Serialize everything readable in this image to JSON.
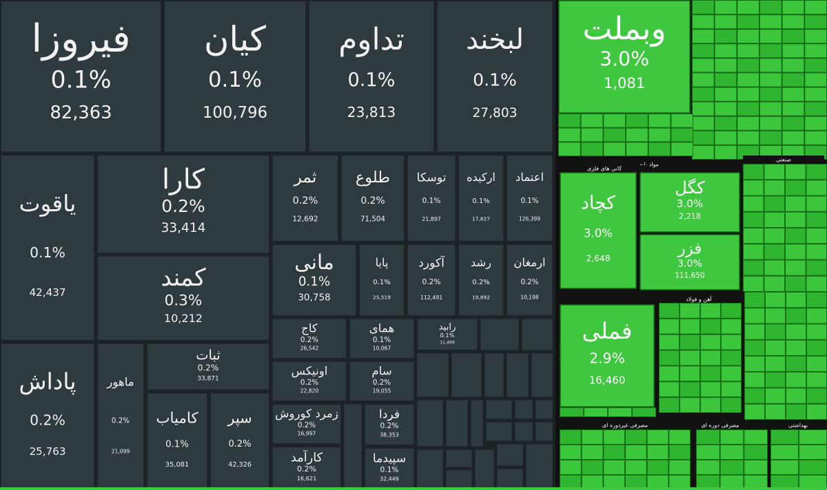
{
  "dark_tiles": [
    {
      "name": "فیروزا",
      "change": "0.1%",
      "volume": "82,363"
    },
    {
      "name": "کیان",
      "change": "0.1%",
      "volume": "100,796"
    },
    {
      "name": "تداوم",
      "change": "0.1%",
      "volume": "23,813"
    },
    {
      "name": "لبخند",
      "change": "0.1%",
      "volume": "27,803"
    },
    {
      "name": "یاقوت",
      "change": "0.1%",
      "volume": "42,437"
    },
    {
      "name": "کارا",
      "change": "0.2%",
      "volume": "33,414"
    },
    {
      "name": "کمند",
      "change": "0.3%",
      "volume": "10,212"
    },
    {
      "name": "پاداش",
      "change": "0.2%",
      "volume": "25,763"
    },
    {
      "name": "ماهور",
      "change": "0.2%",
      "volume": "21,099"
    },
    {
      "name": "ثبات",
      "change": "0.2%",
      "volume": "33,871"
    },
    {
      "name": "کامیاب",
      "change": "0.1%",
      "volume": "35,081"
    },
    {
      "name": "سپر",
      "change": "0.2%",
      "volume": "42,326"
    },
    {
      "name": "ثمر",
      "change": "0.2%",
      "volume": "12,692"
    },
    {
      "name": "طلوع",
      "change": "0.2%",
      "volume": "71,504"
    },
    {
      "name": "توسکا",
      "change": "0.1%",
      "volume": "21,897"
    },
    {
      "name": "ارکیده",
      "change": "0.1%",
      "volume": "17,827"
    },
    {
      "name": "اعتماد",
      "change": "0.1%",
      "volume": "126,399"
    },
    {
      "name": "مانی",
      "change": "0.1%",
      "volume": "30,758"
    },
    {
      "name": "پایا",
      "change": "0.1%",
      "volume": "25,519"
    },
    {
      "name": "آکورد",
      "change": "0.2%",
      "volume": "112,491"
    },
    {
      "name": "رشد",
      "change": "0.2%",
      "volume": "19,892"
    },
    {
      "name": "ارمغان",
      "change": "0.2%",
      "volume": "10,198"
    },
    {
      "name": "کاج",
      "change": "0.2%",
      "volume": "26,542"
    },
    {
      "name": "همای",
      "change": "0.1%",
      "volume": "10,067"
    },
    {
      "name": "رابید",
      "change": "0.1%",
      "volume": "11,499"
    },
    {
      "name": "اونیکس",
      "change": "0.2%",
      "volume": "22,820"
    },
    {
      "name": "سام",
      "change": "0.2%",
      "volume": "19,055"
    },
    {
      "name": "زمرد کوروش",
      "change": "0.2%",
      "volume": "16,997"
    },
    {
      "name": "فردا",
      "change": "0.2%",
      "volume": "38,353"
    },
    {
      "name": "کارآمد",
      "change": "0.2%",
      "volume": "16,621"
    },
    {
      "name": "سپیدما",
      "change": "0.1%",
      "volume": "32,449"
    }
  ],
  "green_tiles": [
    {
      "name": "وبملت",
      "change": "3.0%",
      "volume": "1,081"
    },
    {
      "name": "کچاد",
      "change": "3.0%",
      "volume": "2,648"
    },
    {
      "name": "کگل",
      "change": "3.0%",
      "volume": "2,218"
    },
    {
      "name": "فزر",
      "change": "3.0%",
      "volume": "111,650"
    },
    {
      "name": "فملی",
      "change": "2.9%",
      "volume": "16,460"
    }
  ],
  "section_headers": [
    "مواد پایه",
    "کانی های فلزی",
    "آهن و فولاد",
    "صنعتی",
    "مصرفی غیردوره ای",
    "مصرفی دوره ای",
    "بهداشتی"
  ]
}
